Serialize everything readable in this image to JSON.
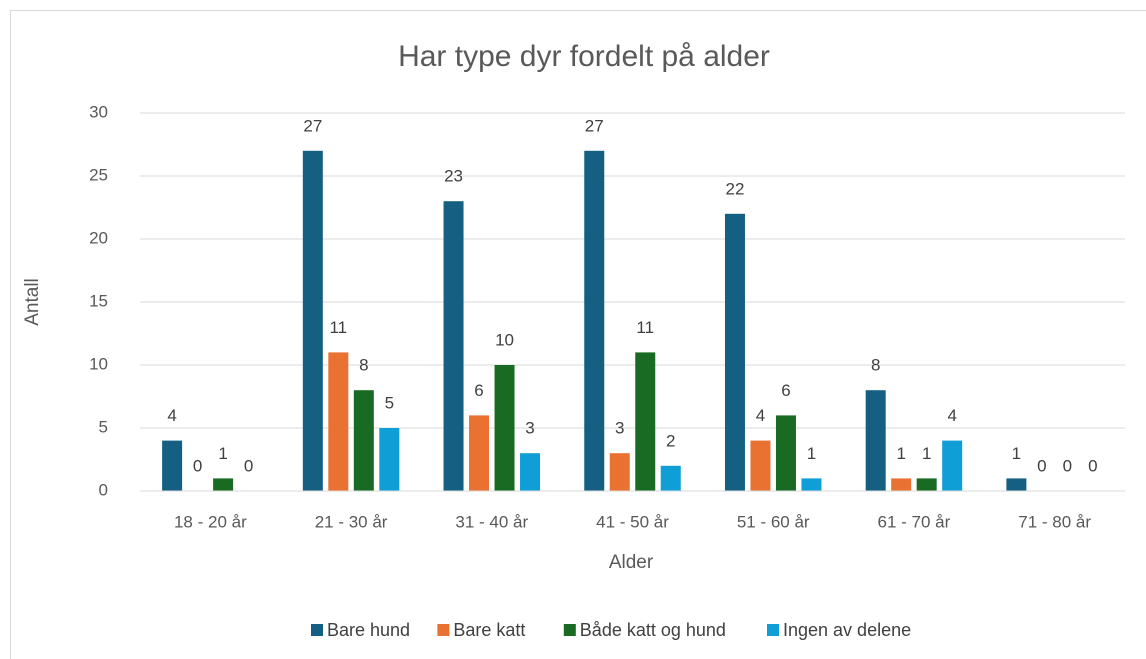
{
  "chart_data": {
    "type": "bar",
    "title": "Har type dyr fordelt på alder",
    "x_label": "Alder",
    "y_label": "Antall",
    "categories": [
      "18 - 20 år",
      "21 - 30 år",
      "31 - 40 år",
      "41 - 50 år",
      "51 - 60 år",
      "61 - 70 år",
      "71 - 80 år"
    ],
    "series": [
      {
        "name": "Bare hund",
        "color": "#156082",
        "values": [
          4,
          27,
          23,
          27,
          22,
          8,
          1
        ]
      },
      {
        "name": "Bare katt",
        "color": "#e97132",
        "values": [
          0,
          11,
          6,
          3,
          4,
          1,
          0
        ]
      },
      {
        "name": "Både katt og hund",
        "color": "#196b24",
        "values": [
          1,
          8,
          10,
          11,
          6,
          1,
          0
        ]
      },
      {
        "name": "Ingen av delene",
        "color": "#0f9ed5",
        "values": [
          0,
          5,
          3,
          2,
          1,
          4,
          0
        ]
      }
    ],
    "ylim": [
      0,
      30
    ],
    "yticks": [
      0,
      5,
      10,
      15,
      20,
      25,
      30
    ],
    "grid": true,
    "legend": "bottom"
  }
}
